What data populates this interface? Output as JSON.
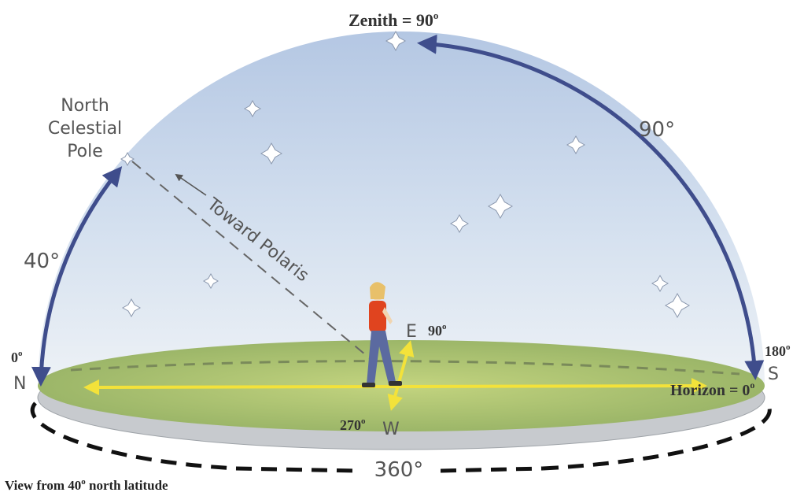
{
  "colors": {
    "sky_top": "#b9cbe5",
    "sky_bottom": "#eef2f7",
    "ground": "#9db86a",
    "ground_edge": "#c9ccd1",
    "arc": "#3f4d8c",
    "yellow": "#f3e23a",
    "dashed": "#888888",
    "star": "#ffffff"
  },
  "labels": {
    "zenith": "Zenith = 90",
    "zenith_deg": "o",
    "ncp_line1": "North",
    "ncp_line2": "Celestial",
    "ncp_line3": "Pole",
    "arc_90": "90°",
    "arc_40": "40°",
    "toward_polaris": "Toward Polaris",
    "east": "E",
    "east_deg": "90",
    "east_deg_sup": "o",
    "west": "W",
    "west_deg": "270",
    "west_deg_sup": "o",
    "north": "N",
    "north_deg": "0",
    "north_deg_sup": "o",
    "south": "S",
    "south_deg": "180",
    "south_deg_sup": "o",
    "horizon": "Horizon = 0",
    "horizon_deg": "o",
    "full_circle": "360°",
    "caption_prefix": "View from 40",
    "caption_sup": "o",
    "caption_suffix": " north latitude"
  }
}
